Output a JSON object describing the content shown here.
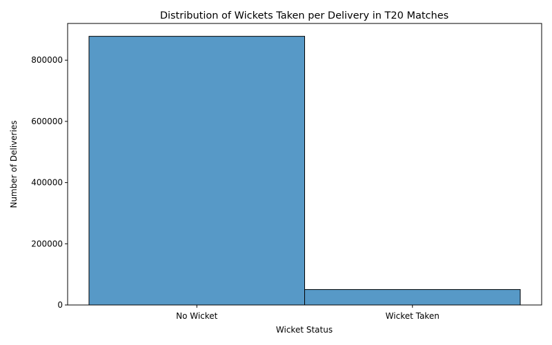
{
  "chart_data": {
    "type": "bar",
    "title": "Distribution of Wickets Taken per Delivery in T20 Matches",
    "xlabel": "Wicket Status",
    "ylabel": "Number of Deliveries",
    "categories": [
      "No Wicket",
      "Wicket Taken"
    ],
    "values": [
      878000,
      50500
    ],
    "ylim": [
      0,
      920000
    ],
    "yticks": [
      0,
      200000,
      400000,
      600000,
      800000
    ],
    "grid": false,
    "bar_color": "#5799c7",
    "edge_color": "#000000"
  }
}
